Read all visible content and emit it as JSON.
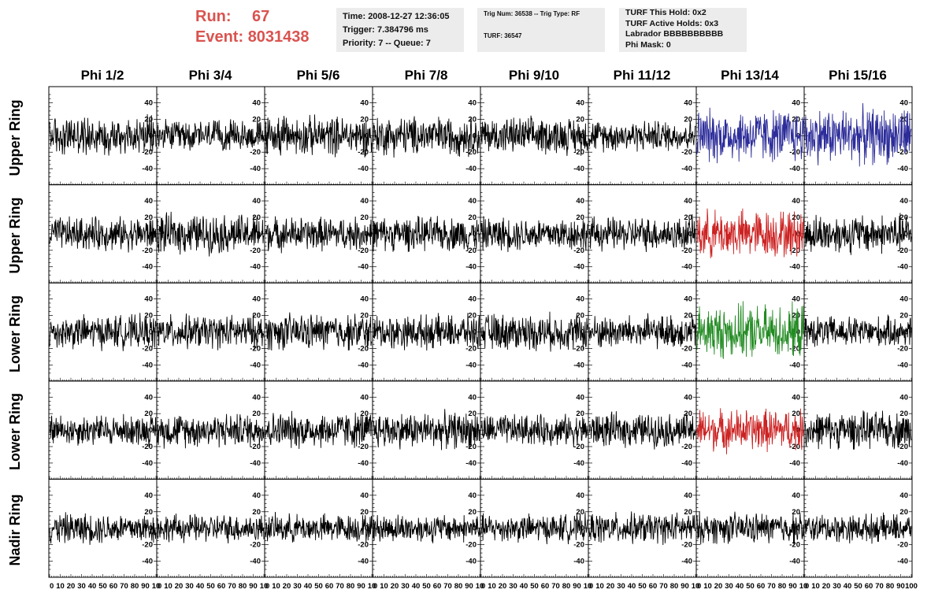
{
  "run": {
    "run_label": "Run:",
    "run_value": "67",
    "event_label": "Event:",
    "event_value": "8031438",
    "color": "#d9534f"
  },
  "info_time": {
    "time": "Time: 2008-12-27 12:36:05",
    "trigger": "Trigger: 7.384796 ms",
    "priority": "Priority: 7 -- Queue: 7"
  },
  "info_trig": {
    "trig": "Trig Num: 36538 -- Trig Type: RF",
    "turf": "TURF: 36547"
  },
  "info_turf": {
    "hold": "TURF This Hold: 0x2",
    "active": "TURF Active Holds: 0x3",
    "labrador": "Labrador BBBBBBBBBB",
    "mask": "Phi Mask: 0"
  },
  "columns": [
    "Phi 1/2",
    "Phi 3/4",
    "Phi 5/6",
    "Phi 7/8",
    "Phi 9/10",
    "Phi 11/12",
    "Phi 13/14",
    "Phi 15/16"
  ],
  "rows": [
    "Upper Ring",
    "Upper Ring",
    "Lower Ring",
    "Lower Ring",
    "Nadir Ring"
  ],
  "chart_data": {
    "type": "line",
    "title": "",
    "xlabel": "",
    "ylabel": "",
    "xlim": [
      0,
      100
    ],
    "ylim": [
      -50,
      50
    ],
    "x_ticks": [
      0,
      10,
      20,
      30,
      40,
      50,
      60,
      70,
      80,
      90,
      100
    ],
    "x_tick_labels_per_panel": [
      "0",
      "10",
      "20",
      "30",
      "40",
      "50",
      "60",
      "70",
      "80",
      "90",
      "10"
    ],
    "x_tick_label_last_panel_end": "100",
    "y_ticks": [
      -40,
      -20,
      0,
      20,
      40
    ],
    "y_tick_labels": [
      "-40",
      "-20",
      "0",
      "20",
      "40"
    ],
    "samples_per_trace": 260,
    "grid": false,
    "colors": {
      "default": "#000000",
      "blue": "#2c2c9a",
      "red": "#cc2222",
      "green": "#228b22"
    },
    "panel_colors": [
      [
        "default",
        "default",
        "default",
        "default",
        "default",
        "default",
        "blue",
        "blue"
      ],
      [
        "default",
        "default",
        "default",
        "default",
        "default",
        "default",
        "red",
        "default"
      ],
      [
        "default",
        "default",
        "default",
        "default",
        "default",
        "default",
        "green",
        "default"
      ],
      [
        "default",
        "default",
        "default",
        "default",
        "default",
        "default",
        "red",
        "default"
      ],
      [
        "default",
        "default",
        "default",
        "default",
        "default",
        "default",
        "default",
        "default"
      ]
    ],
    "series_amplitude": [
      [
        28,
        22,
        28,
        28,
        26,
        22,
        38,
        40
      ],
      [
        24,
        28,
        24,
        24,
        24,
        24,
        34,
        28
      ],
      [
        24,
        24,
        26,
        24,
        26,
        24,
        38,
        22
      ],
      [
        22,
        24,
        26,
        26,
        22,
        24,
        30,
        26
      ],
      [
        22,
        20,
        20,
        20,
        20,
        22,
        22,
        20
      ]
    ]
  }
}
